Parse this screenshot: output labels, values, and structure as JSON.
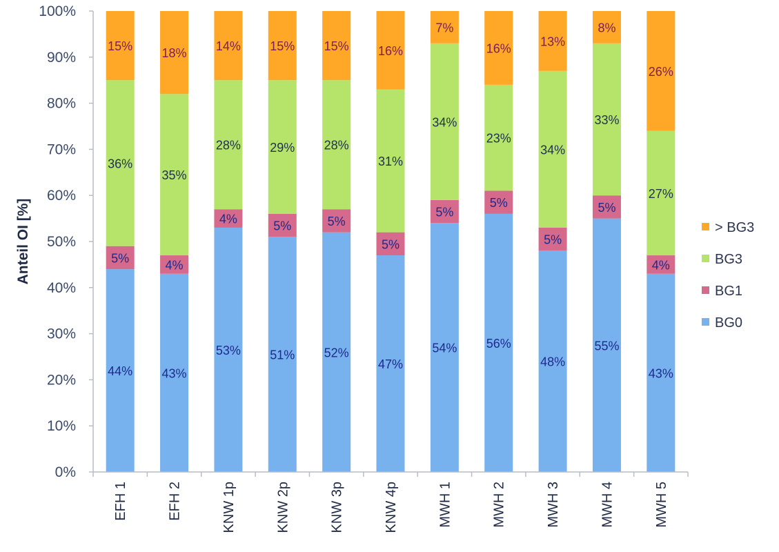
{
  "chart_data": {
    "type": "bar",
    "stacked": true,
    "percent": true,
    "title": "",
    "xlabel": "",
    "ylabel": "Anteil OI [%]",
    "ylim": [
      0,
      100
    ],
    "y_ticks": [
      "0%",
      "10%",
      "20%",
      "30%",
      "40%",
      "50%",
      "60%",
      "70%",
      "80%",
      "90%",
      "100%"
    ],
    "categories": [
      "EFH 1",
      "EFH 2",
      "KNW 1p",
      "KNW 2p",
      "KNW 3p",
      "KNW 4p",
      "MWH 1",
      "MWH 2",
      "MWH 3",
      "MWH 4",
      "MWH 5"
    ],
    "series": [
      {
        "name": "BG0",
        "color": "#78b2ee",
        "label_color": "#1c2a8c",
        "values": [
          44,
          43,
          53,
          51,
          52,
          47,
          54,
          56,
          48,
          55,
          43
        ],
        "labels": [
          "44%",
          "43%",
          "53%",
          "51%",
          "52%",
          "47%",
          "54%",
          "56%",
          "48%",
          "55%",
          "43%"
        ]
      },
      {
        "name": "BG1",
        "color": "#d66a8c",
        "label_color": "#1c2a8c",
        "values": [
          5,
          4,
          4,
          5,
          5,
          5,
          5,
          5,
          5,
          5,
          4
        ],
        "labels": [
          "5%",
          "4%",
          "4%",
          "5%",
          "5%",
          "5%",
          "5%",
          "5%",
          "5%",
          "5%",
          "4%"
        ]
      },
      {
        "name": "BG3",
        "color": "#b6e36a",
        "label_color": "#1f3050",
        "values": [
          36,
          35,
          28,
          29,
          28,
          31,
          34,
          23,
          34,
          33,
          27
        ],
        "labels": [
          "36%",
          "35%",
          "28%",
          "29%",
          "28%",
          "31%",
          "34%",
          "23%",
          "34%",
          "33%",
          "27%"
        ]
      },
      {
        "name": "> BG3",
        "color": "#ffa726",
        "label_color": "#7a1e55",
        "values": [
          15,
          18,
          14,
          15,
          15,
          16,
          7,
          16,
          13,
          8,
          26
        ],
        "labels": [
          "15%",
          "18%",
          "14%",
          "15%",
          "15%",
          "16%",
          "7%",
          "16%",
          "13%",
          "8%",
          "26%"
        ]
      }
    ],
    "legend": {
      "position": "right",
      "order": [
        "> BG3",
        "BG3",
        "BG1",
        "BG0"
      ]
    },
    "grid": false
  }
}
